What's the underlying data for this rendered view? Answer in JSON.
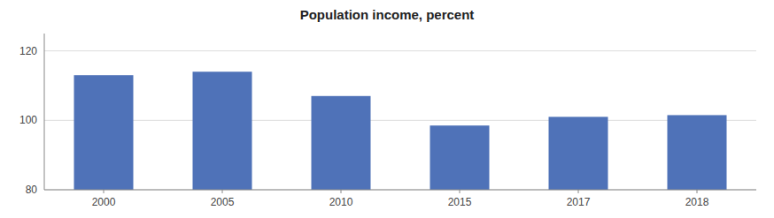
{
  "chart_data": {
    "type": "bar",
    "title": "Population income, percent",
    "categories": [
      "2000",
      "2005",
      "2010",
      "2015",
      "2017",
      "2018"
    ],
    "values": [
      113.0,
      114.0,
      107.0,
      98.5,
      101.0,
      101.5
    ],
    "color": "#4F72B8",
    "ylim": [
      80,
      125
    ],
    "yticks": [
      80,
      100,
      120
    ],
    "grid": true
  }
}
